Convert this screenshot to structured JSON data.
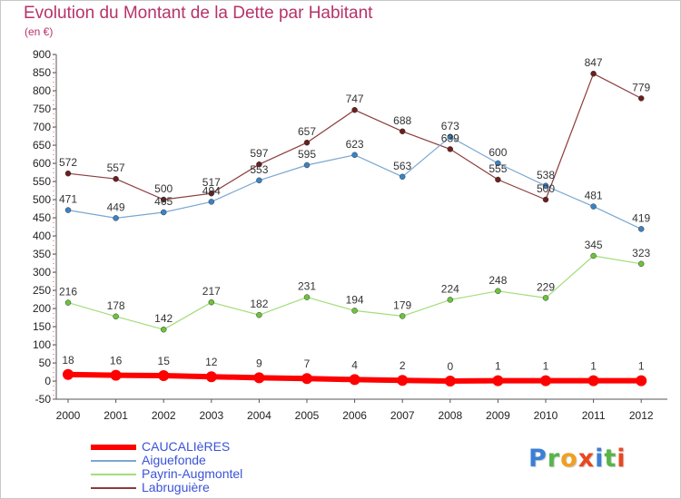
{
  "header": {
    "title": "Evolution du Montant de la Dette par Habitant",
    "subtitle": "(en €)"
  },
  "logo": {
    "text": "Proxiti",
    "letters": [
      {
        "ch": "P",
        "color": "#3b7fd6"
      },
      {
        "ch": "r",
        "color": "#58b548"
      },
      {
        "ch": "o",
        "color": "#f0a020"
      },
      {
        "ch": "x",
        "color": "#e84820"
      },
      {
        "ch": "i",
        "color": "#3b7fd6"
      },
      {
        "ch": "t",
        "color": "#58b548"
      },
      {
        "ch": "i",
        "color": "#e84820"
      }
    ]
  },
  "chart_data": {
    "type": "line",
    "x": [
      "2000",
      "2001",
      "2002",
      "2003",
      "2004",
      "2005",
      "2006",
      "2007",
      "2008",
      "2009",
      "2010",
      "2011",
      "2012"
    ],
    "ylim": [
      -50,
      900
    ],
    "yticks": [
      -50,
      0,
      50,
      100,
      150,
      200,
      250,
      300,
      350,
      400,
      450,
      500,
      550,
      600,
      650,
      700,
      750,
      800,
      850,
      900
    ],
    "grid": false,
    "legend_position": "bottom-left",
    "series": [
      {
        "name": "CAUCALIèRES",
        "color": "#ff0000",
        "marker_color": "#ff0000",
        "width": 6,
        "marker_r": 6,
        "values": [
          18,
          16,
          15,
          12,
          9,
          7,
          4,
          2,
          0,
          1,
          1,
          1,
          1
        ]
      },
      {
        "name": "Aiguefonde",
        "color": "#7ba7d0",
        "marker_color": "#3a83c4",
        "width": 1.2,
        "marker_r": 3,
        "values": [
          471,
          449,
          465,
          494,
          553,
          595,
          623,
          563,
          673,
          600,
          538,
          481,
          419
        ]
      },
      {
        "name": "Payrin-Augmontel",
        "color": "#a3dd7a",
        "marker_color": "#6cc43a",
        "width": 1.2,
        "marker_r": 3,
        "values": [
          216,
          178,
          142,
          217,
          182,
          231,
          194,
          179,
          224,
          248,
          229,
          345,
          323
        ]
      },
      {
        "name": "Labruguière",
        "color": "#8c3b3b",
        "marker_color": "#6b1f1f",
        "width": 1.2,
        "marker_r": 3,
        "values": [
          572,
          557,
          500,
          517,
          597,
          657,
          747,
          688,
          639,
          555,
          500,
          847,
          779
        ]
      }
    ],
    "value_labels": [
      {
        "series": 0,
        "values": [
          "18",
          "16",
          "15",
          "12",
          "9",
          "7",
          "4",
          "2",
          "0",
          "1",
          "1",
          "1",
          "1"
        ]
      },
      {
        "series": 1,
        "values": [
          "471",
          "449",
          "465",
          "494",
          "553",
          "595",
          "623",
          "563",
          "673",
          "600",
          "538",
          "481",
          "419"
        ]
      },
      {
        "series": 2,
        "values": [
          "216",
          "178",
          "142",
          "217",
          "182",
          "231",
          "194",
          "179",
          "224",
          "248",
          "229",
          "345",
          "323"
        ]
      },
      {
        "series": 3,
        "values": [
          "572",
          "557",
          "500",
          "517",
          "597",
          "657",
          "747",
          "688",
          "639",
          "555",
          "500",
          "847",
          "779"
        ]
      }
    ]
  }
}
